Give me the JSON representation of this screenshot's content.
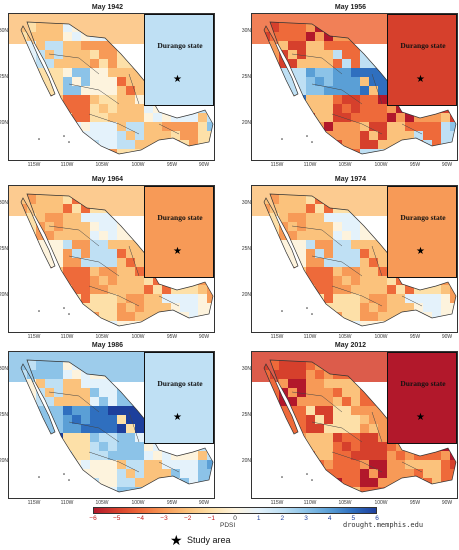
{
  "panels": [
    {
      "title": "May 1942",
      "inset_label": "Durango state",
      "palette": "mixed-dry"
    },
    {
      "title": "May 1956",
      "inset_label": "Durango state",
      "palette": "dry-north-wet-south"
    },
    {
      "title": "May 1964",
      "inset_label": "Durango state",
      "palette": "dry"
    },
    {
      "title": "May 1974",
      "inset_label": "Durango state",
      "palette": "dry"
    },
    {
      "title": "May 1986",
      "inset_label": "Durango state",
      "palette": "wet"
    },
    {
      "title": "May 2012",
      "inset_label": "Durango state",
      "palette": "very-dry"
    }
  ],
  "axes": {
    "latitudes": [
      "30N",
      "25N",
      "20N"
    ],
    "longitudes": [
      "115W",
      "110W",
      "105W",
      "100W",
      "95W",
      "90W"
    ]
  },
  "colorbar": {
    "title": "PDSI",
    "ticks": [
      "−6",
      "−5",
      "−4",
      "−3",
      "−2",
      "−1",
      "0",
      "1",
      "2",
      "3",
      "4",
      "5",
      "6"
    ],
    "colors": [
      "#b2182b",
      "#d6402c",
      "#ee6a3a",
      "#f79a57",
      "#fbc27c",
      "#fde0a8",
      "#fdf3dd",
      "#e4f2fb",
      "#bfe0f4",
      "#8cc3e8",
      "#5a9fd6",
      "#2f6fbf",
      "#1d3f9c"
    ]
  },
  "credit": "drought.memphis.edu",
  "legend": {
    "symbol": "star-icon",
    "label": "Study area"
  }
}
